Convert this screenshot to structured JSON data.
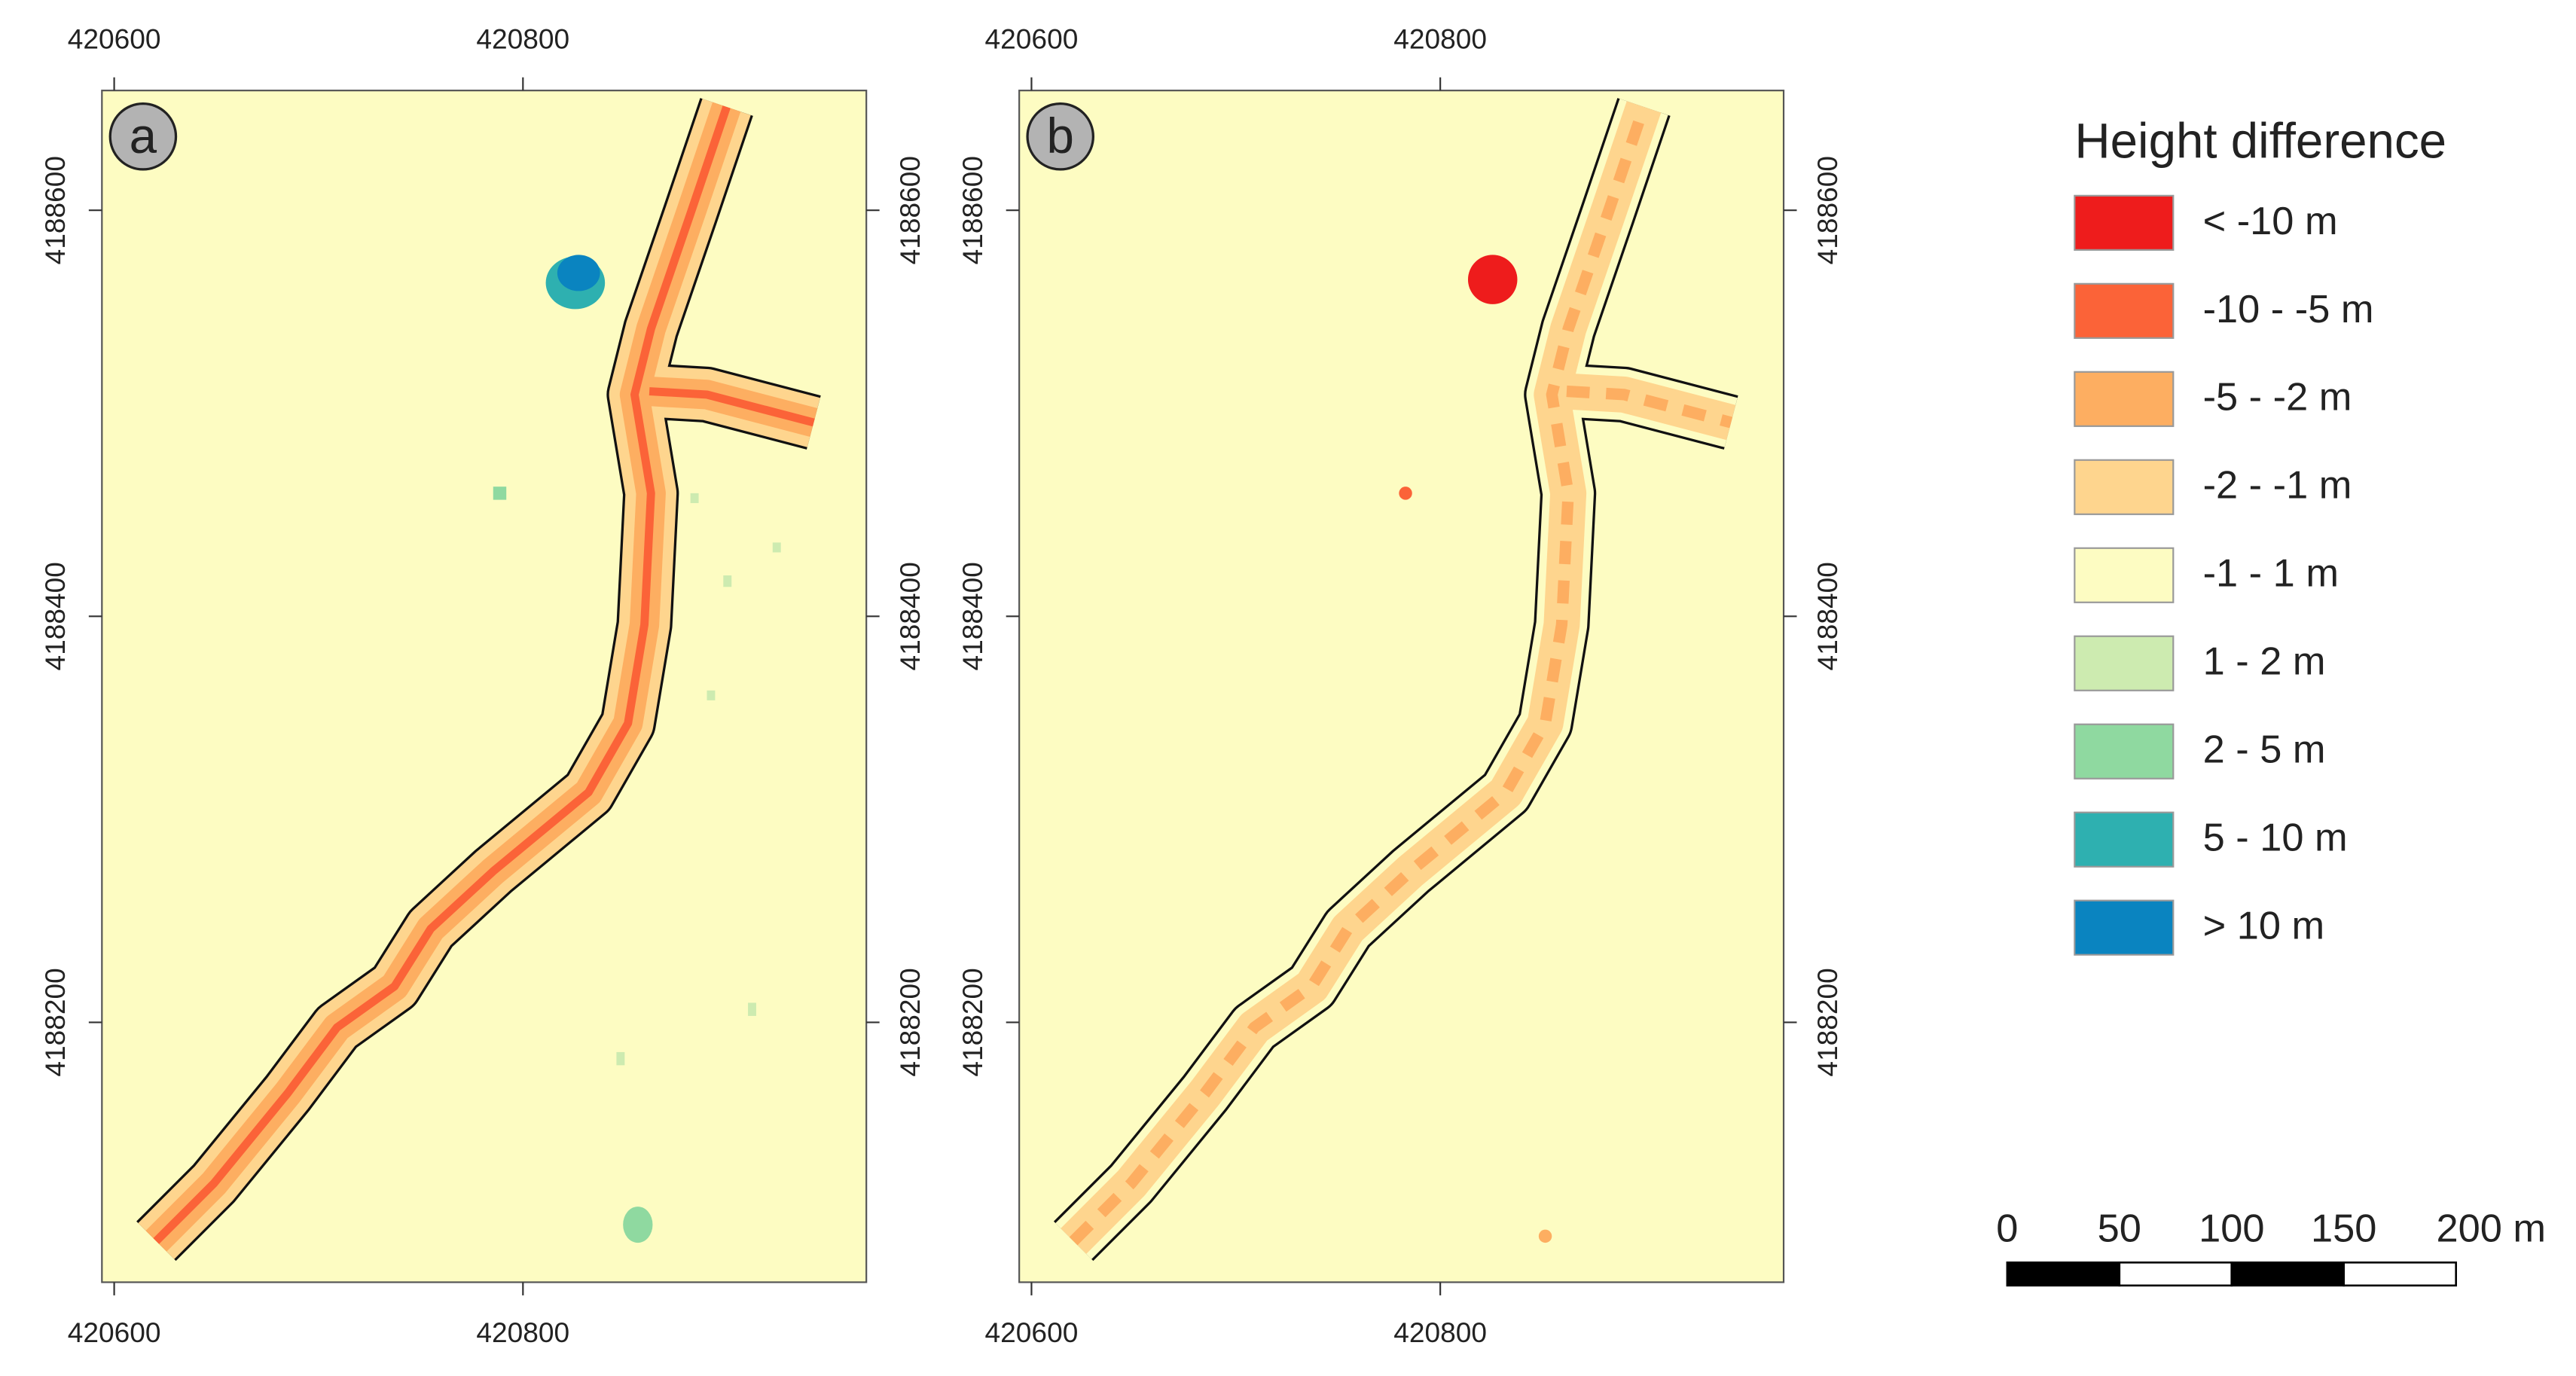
{
  "panels": [
    {
      "label": "a",
      "xlim": [
        420594,
        420968
      ],
      "ylim": [
        4188072,
        4188659
      ],
      "xticks": [
        420600,
        420800
      ],
      "yticks": [
        4188200,
        4188400,
        4188600
      ]
    },
    {
      "label": "b",
      "xlim": [
        420594,
        420968
      ],
      "ylim": [
        4188072,
        4188659
      ],
      "xticks": [
        420600,
        420800
      ],
      "yticks": [
        4188200,
        4188400,
        4188600
      ]
    }
  ],
  "legend": {
    "title": "Height difference",
    "items": [
      {
        "label": "< -10 m",
        "color": "#ee1c1c"
      },
      {
        "label": "-10 - -5 m",
        "color": "#fb6338"
      },
      {
        "label": "-5 - -2 m",
        "color": "#fdae61"
      },
      {
        "label": "-2 - -1 m",
        "color": "#fed58e"
      },
      {
        "label": "-1 - 1 m",
        "color": "#fdfcc2"
      },
      {
        "label": "1 - 2 m",
        "color": "#cdebb0"
      },
      {
        "label": "2 - 5 m",
        "color": "#8fd9a0"
      },
      {
        "label": "5 - 10 m",
        "color": "#2eb0b0"
      },
      {
        "label": "> 10 m",
        "color": "#0a84c0"
      }
    ]
  },
  "scale_bar": {
    "ticks": [
      0,
      50,
      100,
      150,
      {
        "value": 200,
        "label": "200 m"
      }
    ]
  }
}
